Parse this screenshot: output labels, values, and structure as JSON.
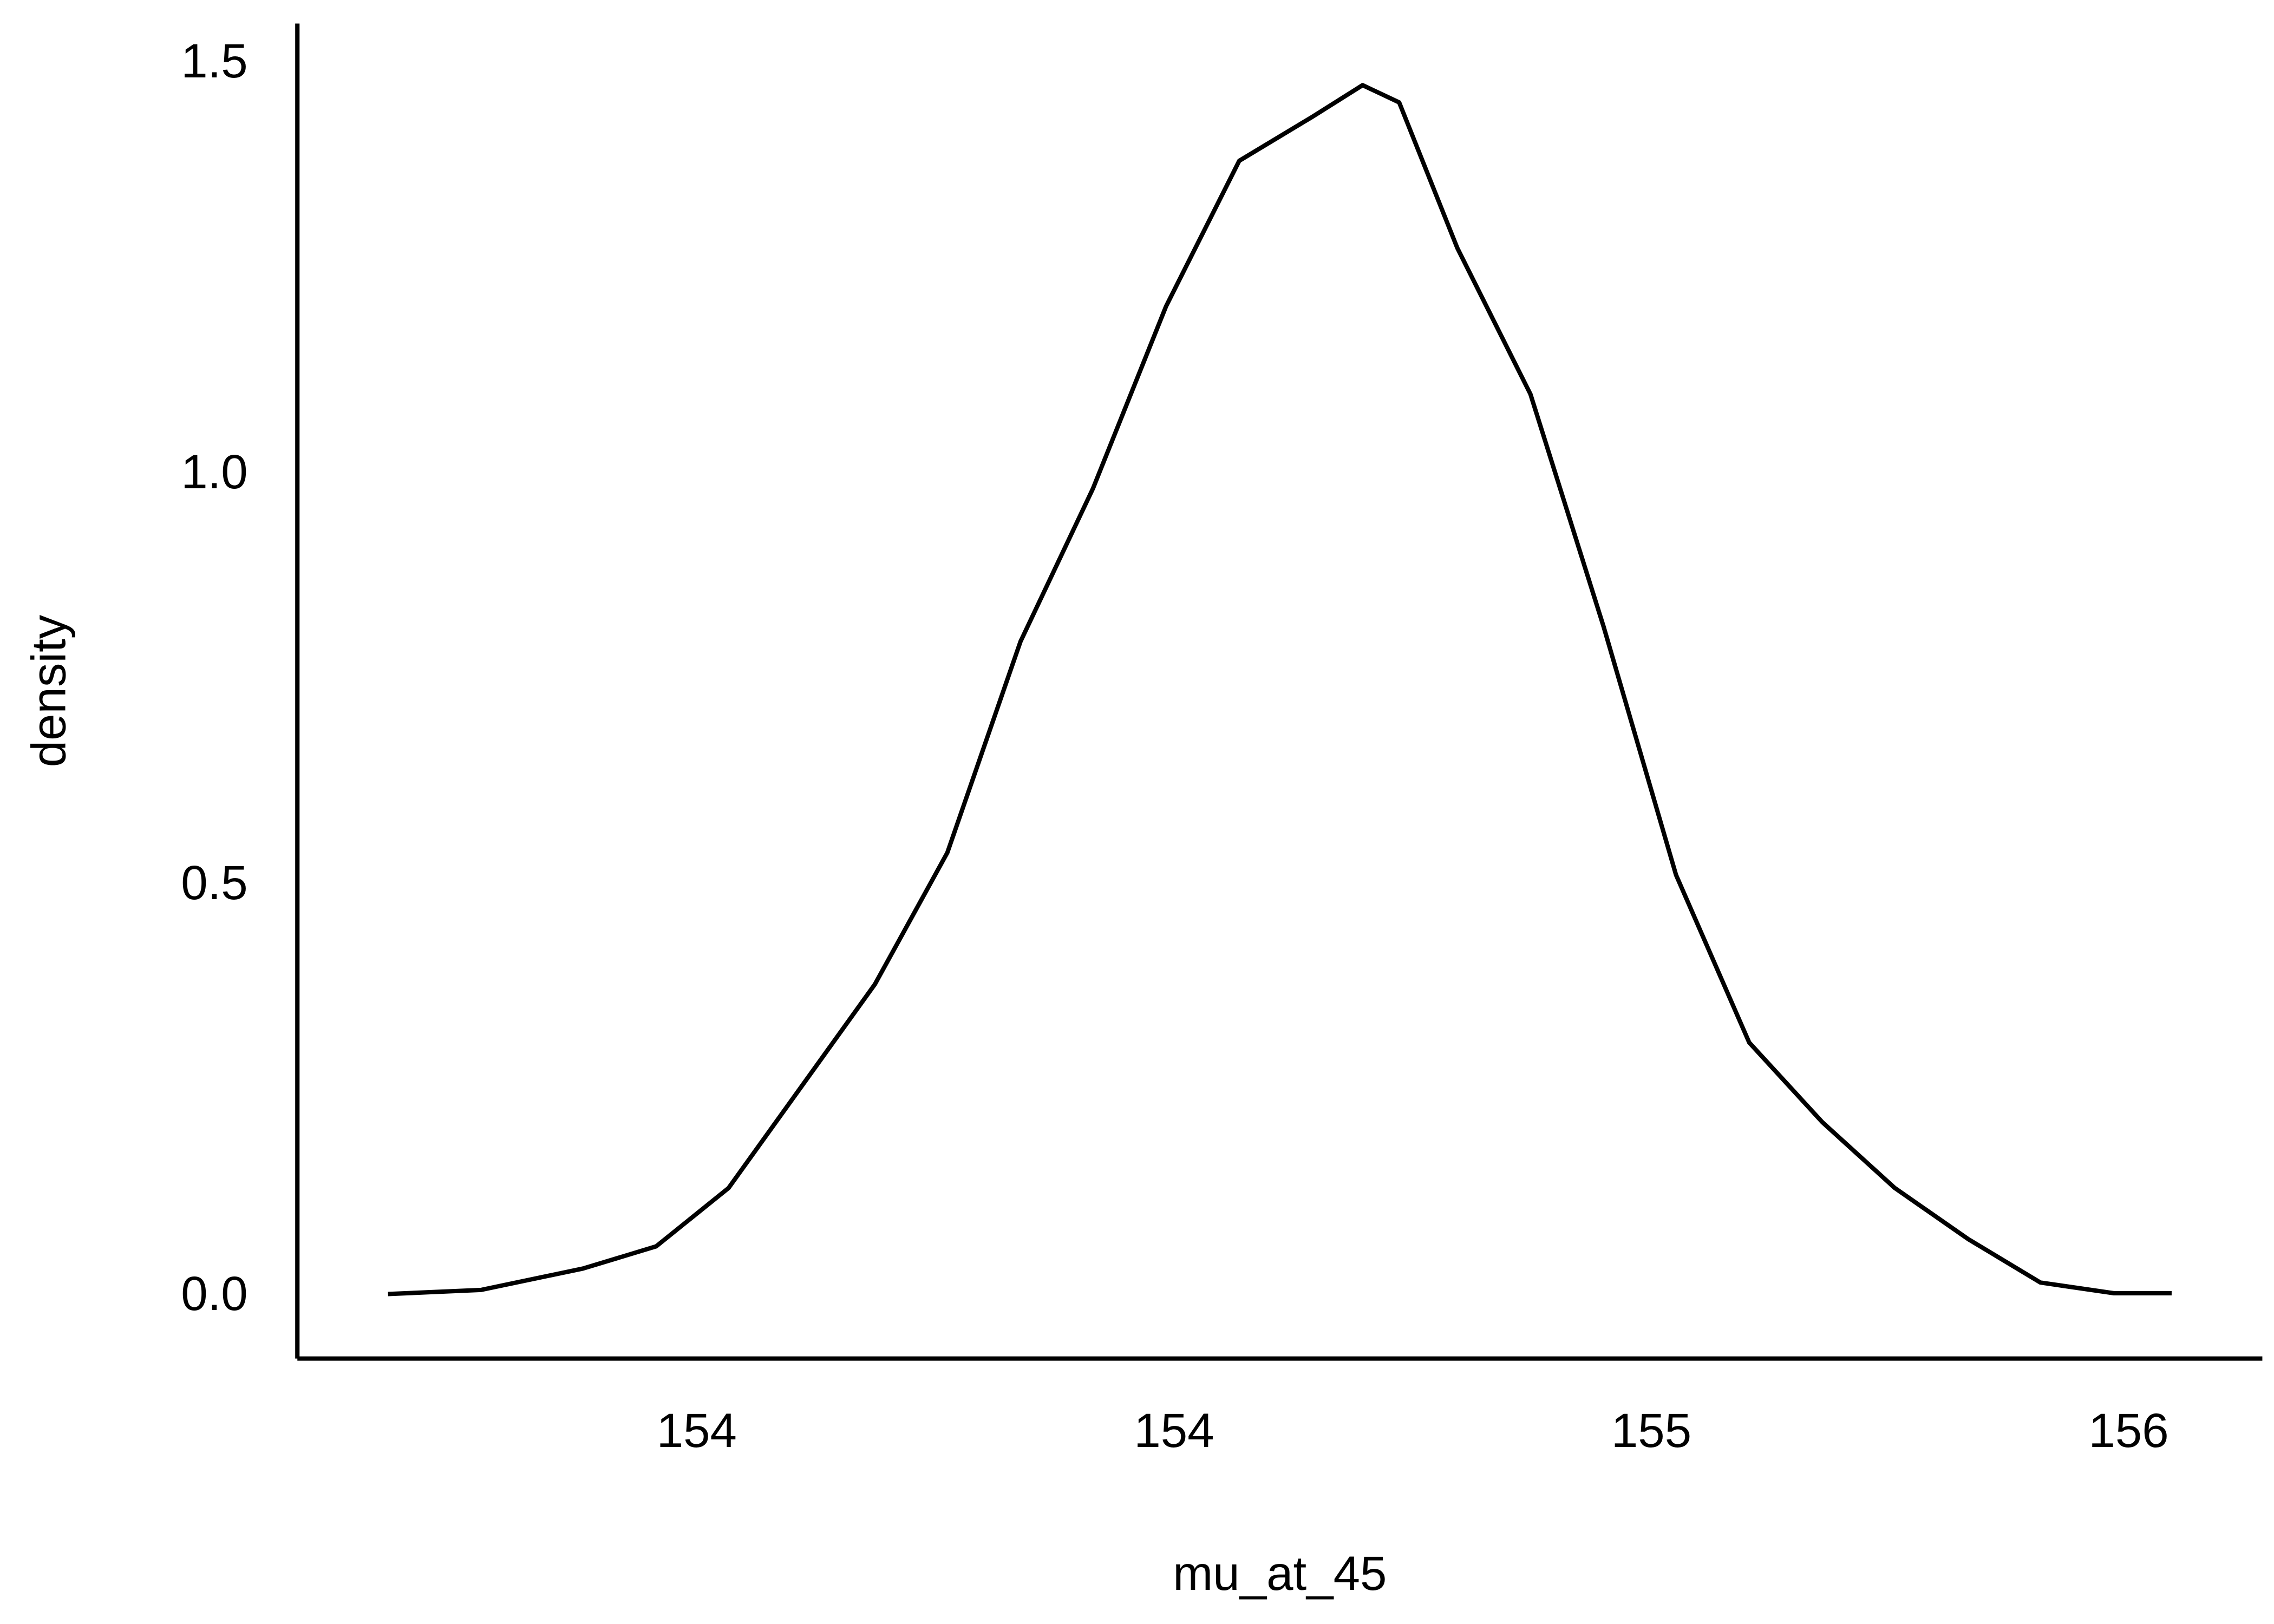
{
  "chart_data": {
    "type": "line",
    "x_label": "mu_at_45",
    "y_label": "density",
    "x": [
      153.412,
      153.529,
      153.657,
      153.749,
      153.84,
      153.932,
      154.024,
      154.115,
      154.207,
      154.298,
      154.39,
      154.482,
      154.573,
      154.637,
      154.683,
      154.756,
      154.848,
      154.94,
      155.031,
      155.123,
      155.215,
      155.306,
      155.398,
      155.489,
      155.581,
      155.654
    ],
    "series": [
      {
        "name": "density",
        "color": "#000000",
        "values": [
          0.004,
          0.009,
          0.035,
          0.062,
          0.133,
          0.257,
          0.381,
          0.541,
          0.798,
          0.984,
          1.206,
          1.383,
          1.436,
          1.475,
          1.454,
          1.277,
          1.099,
          0.816,
          0.514,
          0.31,
          0.213,
          0.133,
          0.071,
          0.018,
          0.005,
          0.005
        ]
      }
    ],
    "xlim": [
      153.298,
      155.768
    ],
    "ylim": [
      -0.0745,
      1.55
    ],
    "xticks": [
      {
        "value": 153.8,
        "label": "154"
      },
      {
        "value": 154.4,
        "label": "154"
      },
      {
        "value": 155.0,
        "label": "155"
      },
      {
        "value": 155.6,
        "label": "156"
      }
    ],
    "yticks": [
      {
        "value": 0,
        "label": "0.0"
      },
      {
        "value": 0.5,
        "label": "0.5"
      },
      {
        "value": 1,
        "label": "1.0"
      },
      {
        "value": 1.5,
        "label": "1.5"
      }
    ],
    "grid": false
  }
}
